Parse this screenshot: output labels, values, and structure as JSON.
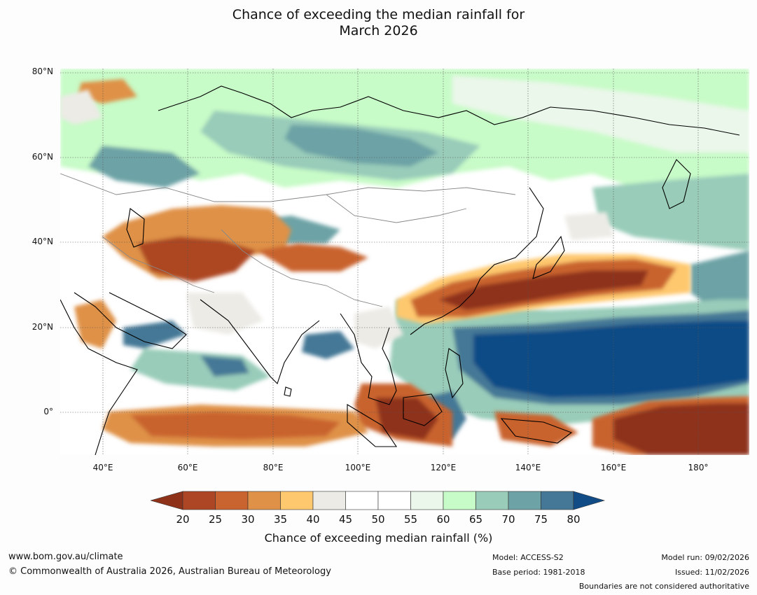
{
  "title_line1": "Chance of exceeding the median rainfall for",
  "title_line2": "March 2026",
  "map": {
    "lat_labels": [
      {
        "text": "80°N",
        "value": 80
      },
      {
        "text": "60°N",
        "value": 60
      },
      {
        "text": "40°N",
        "value": 40
      },
      {
        "text": "20°N",
        "value": 20
      },
      {
        "text": "0°",
        "value": 0
      }
    ],
    "lon_labels": [
      {
        "text": "40°E",
        "value": 40
      },
      {
        "text": "60°E",
        "value": 60
      },
      {
        "text": "80°E",
        "value": 80
      },
      {
        "text": "100°E",
        "value": 100
      },
      {
        "text": "120°E",
        "value": 120
      },
      {
        "text": "140°E",
        "value": 140
      },
      {
        "text": "160°E",
        "value": 160
      },
      {
        "text": "180°",
        "value": 180
      }
    ],
    "lon_range": [
      30,
      192
    ],
    "lat_range": [
      -10,
      81
    ]
  },
  "colorbar": {
    "ticks": [
      "20",
      "25",
      "30",
      "35",
      "40",
      "45",
      "50",
      "55",
      "60",
      "65",
      "70",
      "75",
      "80"
    ],
    "colors": [
      "#8e321a",
      "#ad4624",
      "#c9632f",
      "#df9147",
      "#fec86e",
      "#ecebe6",
      "#ffffff",
      "#ffffff",
      "#eaf7ea",
      "#c7fbc7",
      "#99ccb9",
      "#6da3a6",
      "#457896",
      "#114c86"
    ],
    "label": "Chance of exceeding median rainfall (%)"
  },
  "footer": {
    "website": "www.bom.gov.au/climate",
    "copyright": "© Commonwealth of Australia 2026, Australian Bureau of Meteorology",
    "model": "Model: ACCESS-S2",
    "base_period": "Base period: 1981-2018",
    "model_run": "Model run: 09/02/2026",
    "issued": "Issued: 11/02/2026",
    "disclaimer": "Boundaries are not considered authoritative"
  }
}
